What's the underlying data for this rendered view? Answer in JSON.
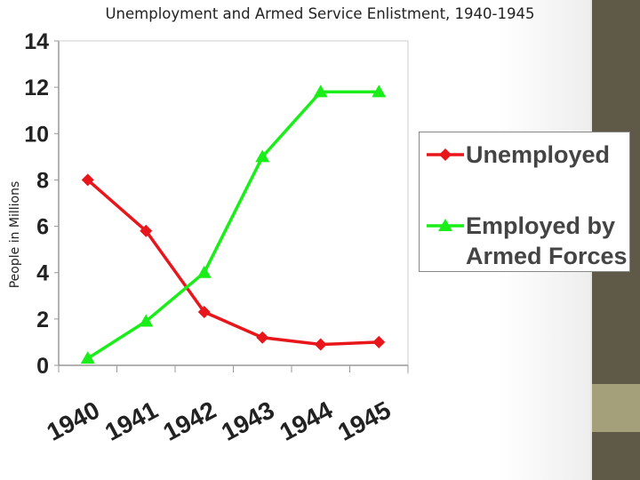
{
  "colors": {
    "unemployed": "#e8161b",
    "armed": "#19ee19",
    "stripe_dark": "#5e5a47",
    "stripe_light": "#a3a07a"
  },
  "chart_data": {
    "type": "line",
    "title": "Unemployment and Armed Service Enlistment, 1940-1945",
    "ylabel": "People in Millions",
    "xlabel": "",
    "categories": [
      "1940",
      "1941",
      "1942",
      "1943",
      "1944",
      "1945"
    ],
    "ylim": [
      0,
      14
    ],
    "yticks": [
      "0",
      "2",
      "4",
      "6",
      "8",
      "10",
      "12",
      "14"
    ],
    "grid": false,
    "legend_position": "right",
    "series": [
      {
        "name": "Unemployed",
        "marker": "diamond",
        "values": [
          8.0,
          5.8,
          2.3,
          1.2,
          0.9,
          1.0
        ]
      },
      {
        "name": "Employed by Armed Forces",
        "name_lines": [
          "Employed by",
          "Armed Forces"
        ],
        "marker": "triangle",
        "values": [
          0.3,
          1.9,
          4.0,
          9.0,
          11.8,
          11.8
        ]
      }
    ]
  }
}
